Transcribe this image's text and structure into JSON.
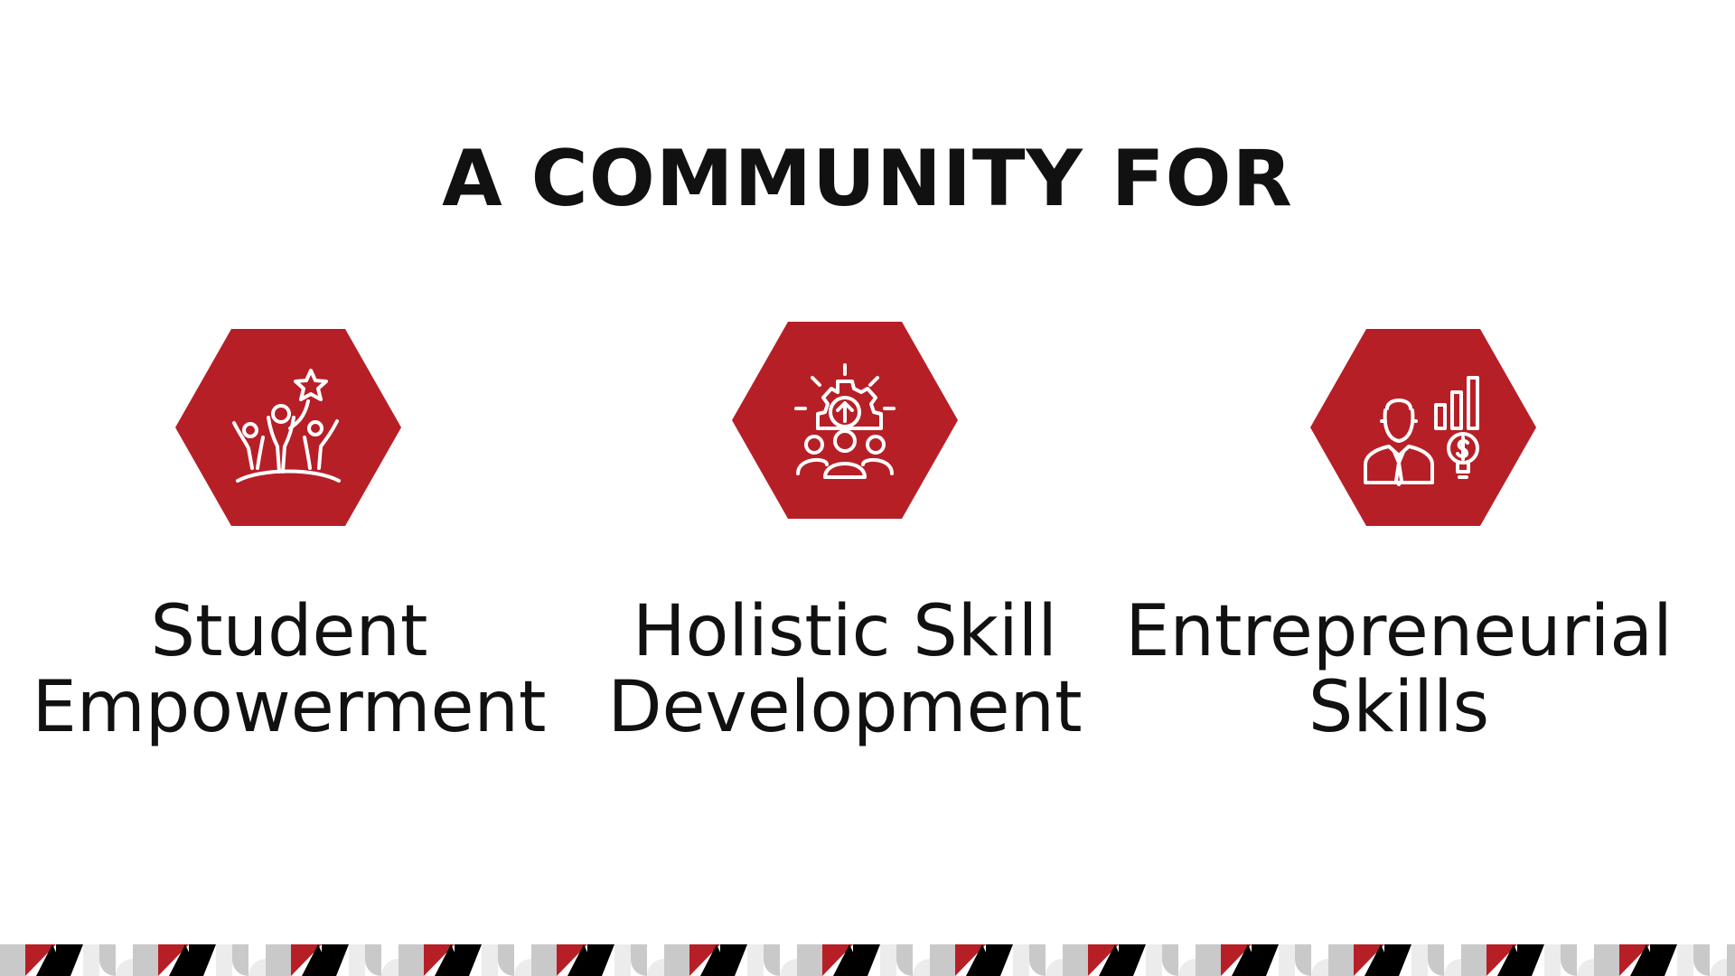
{
  "title": "A COMMUNITY FOR",
  "colors": {
    "accent": "#b71f27",
    "text": "#111111",
    "background": "#ffffff",
    "pattern_black": "#000000",
    "pattern_gray": "#c9c9c9",
    "pattern_light": "#ececec"
  },
  "features": [
    {
      "icon": "team-star-icon",
      "line1": "Student",
      "line2": "Empowerment"
    },
    {
      "icon": "gear-team-icon",
      "line1": "Holistic Skill",
      "line2": "Development"
    },
    {
      "icon": "businessman-growth-icon",
      "line1": "Entrepreneurial",
      "line2": "Skills"
    }
  ]
}
